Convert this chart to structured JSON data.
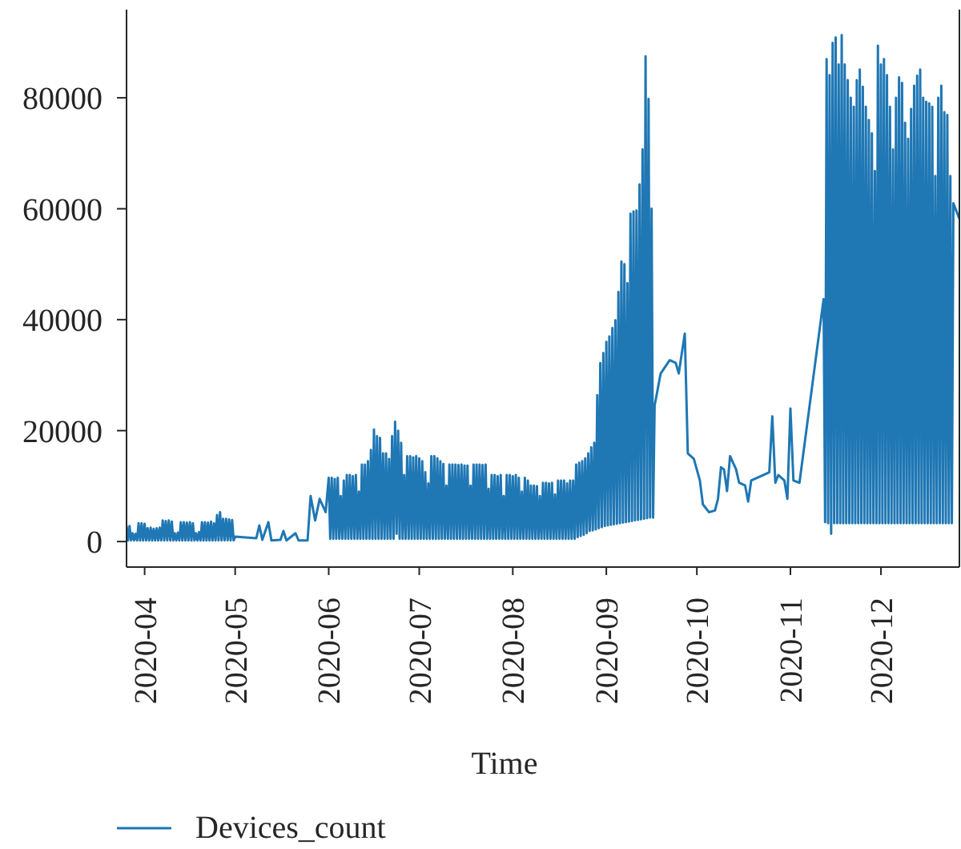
{
  "chart_data": {
    "type": "line",
    "xlabel": "Time",
    "x": [
      "2020-03-26",
      "2020-03-26T12:00",
      "2020-03-27",
      "2020-03-27T12:00",
      "2020-03-28",
      "2020-03-28T12:00",
      "2020-03-29",
      "2020-03-29T12:00",
      "2020-03-30",
      "2020-03-30T12:00",
      "2020-03-31",
      "2020-03-31T12:00",
      "2020-04-01",
      "2020-04-01T12:00",
      "2020-04-02",
      "2020-04-02T12:00",
      "2020-04-03",
      "2020-04-03T12:00",
      "2020-04-04",
      "2020-04-04T12:00",
      "2020-04-05",
      "2020-04-05T12:00",
      "2020-04-06",
      "2020-04-06T12:00",
      "2020-04-07",
      "2020-04-07T12:00",
      "2020-04-08",
      "2020-04-08T12:00",
      "2020-04-09",
      "2020-04-09T12:00",
      "2020-04-10",
      "2020-04-10T12:00",
      "2020-04-11",
      "2020-04-11T12:00",
      "2020-04-12",
      "2020-04-12T12:00",
      "2020-04-13",
      "2020-04-13T12:00",
      "2020-04-14",
      "2020-04-14T12:00",
      "2020-04-15",
      "2020-04-15T12:00",
      "2020-04-16",
      "2020-04-16T12:00",
      "2020-04-17",
      "2020-04-17T12:00",
      "2020-04-18",
      "2020-04-18T12:00",
      "2020-04-19",
      "2020-04-19T12:00",
      "2020-04-20",
      "2020-04-20T12:00",
      "2020-04-21",
      "2020-04-21T12:00",
      "2020-04-22",
      "2020-04-22T12:00",
      "2020-04-23",
      "2020-04-23T12:00",
      "2020-04-24",
      "2020-04-24T12:00",
      "2020-04-25",
      "2020-04-25T12:00",
      "2020-04-26",
      "2020-04-26T12:00",
      "2020-04-27",
      "2020-04-27T12:00",
      "2020-04-28",
      "2020-04-28T12:00",
      "2020-04-29",
      "2020-04-29T12:00",
      "2020-04-30",
      "2020-04-30T12:00",
      "2020-05-01",
      "2020-05-08",
      "2020-05-09",
      "2020-05-10",
      "2020-05-12",
      "2020-05-13",
      "2020-05-16",
      "2020-05-17",
      "2020-05-18",
      "2020-05-21",
      "2020-05-22",
      "2020-05-25",
      "2020-05-26",
      "2020-05-27T12:00",
      "2020-05-29",
      "2020-05-31",
      "2020-06-01",
      "2020-06-01T12:00",
      "2020-06-02",
      "2020-06-02T12:00",
      "2020-06-03",
      "2020-06-03T12:00",
      "2020-06-04",
      "2020-06-04T12:00",
      "2020-06-05",
      "2020-06-05T12:00",
      "2020-06-06",
      "2020-06-06T12:00",
      "2020-06-07",
      "2020-06-07T12:00",
      "2020-06-08",
      "2020-06-08T12:00",
      "2020-06-09",
      "2020-06-09T12:00",
      "2020-06-10",
      "2020-06-10T12:00",
      "2020-06-11",
      "2020-06-11T12:00",
      "2020-06-12",
      "2020-06-12T12:00",
      "2020-06-13",
      "2020-06-13T12:00",
      "2020-06-14",
      "2020-06-14T12:00",
      "2020-06-15",
      "2020-06-15T12:00",
      "2020-06-16",
      "2020-06-16T12:00",
      "2020-06-17",
      "2020-06-17T12:00",
      "2020-06-18",
      "2020-06-18T12:00",
      "2020-06-19",
      "2020-06-19T12:00",
      "2020-06-20",
      "2020-06-20T12:00",
      "2020-06-21",
      "2020-06-21T12:00",
      "2020-06-22",
      "2020-06-22T12:00",
      "2020-06-23",
      "2020-06-23T12:00",
      "2020-06-24",
      "2020-06-24T12:00",
      "2020-06-25",
      "2020-06-25T12:00",
      "2020-06-26",
      "2020-06-26T12:00",
      "2020-06-27",
      "2020-06-27T12:00",
      "2020-06-28",
      "2020-06-28T12:00",
      "2020-06-29",
      "2020-06-29T12:00",
      "2020-06-30",
      "2020-06-30T12:00",
      "2020-07-01",
      "2020-07-01T12:00",
      "2020-07-02",
      "2020-07-02T12:00",
      "2020-07-03",
      "2020-07-03T12:00",
      "2020-07-04",
      "2020-07-04T12:00",
      "2020-07-05",
      "2020-07-05T12:00",
      "2020-07-06",
      "2020-07-06T12:00",
      "2020-07-07",
      "2020-07-07T12:00",
      "2020-07-08",
      "2020-07-08T12:00",
      "2020-07-09",
      "2020-07-09T12:00",
      "2020-07-10",
      "2020-07-10T12:00",
      "2020-07-11",
      "2020-07-11T12:00",
      "2020-07-12",
      "2020-07-12T12:00",
      "2020-07-13",
      "2020-07-13T12:00",
      "2020-07-14",
      "2020-07-14T12:00",
      "2020-07-15",
      "2020-07-15T12:00",
      "2020-07-16",
      "2020-07-16T12:00",
      "2020-07-17",
      "2020-07-17T12:00",
      "2020-07-18",
      "2020-07-18T12:00",
      "2020-07-19",
      "2020-07-19T12:00",
      "2020-07-20",
      "2020-07-20T12:00",
      "2020-07-21",
      "2020-07-21T12:00",
      "2020-07-22",
      "2020-07-22T12:00",
      "2020-07-23",
      "2020-07-23T12:00",
      "2020-07-24",
      "2020-07-24T12:00",
      "2020-07-25",
      "2020-07-25T12:00",
      "2020-07-26",
      "2020-07-26T12:00",
      "2020-07-27",
      "2020-07-27T12:00",
      "2020-07-28",
      "2020-07-28T12:00",
      "2020-07-29",
      "2020-07-29T12:00",
      "2020-07-30",
      "2020-07-30T12:00",
      "2020-07-31",
      "2020-07-31T12:00",
      "2020-08-01",
      "2020-08-01T12:00",
      "2020-08-02",
      "2020-08-02T12:00",
      "2020-08-03",
      "2020-08-03T12:00",
      "2020-08-04",
      "2020-08-04T12:00",
      "2020-08-05",
      "2020-08-05T12:00",
      "2020-08-06",
      "2020-08-06T12:00",
      "2020-08-07",
      "2020-08-07T12:00",
      "2020-08-08",
      "2020-08-08T12:00",
      "2020-08-09",
      "2020-08-09T12:00",
      "2020-08-10",
      "2020-08-10T12:00",
      "2020-08-11",
      "2020-08-11T12:00",
      "2020-08-12",
      "2020-08-12T12:00",
      "2020-08-13",
      "2020-08-13T12:00",
      "2020-08-14",
      "2020-08-14T12:00",
      "2020-08-15",
      "2020-08-15T12:00",
      "2020-08-16",
      "2020-08-16T12:00",
      "2020-08-17",
      "2020-08-17T12:00",
      "2020-08-18",
      "2020-08-18T12:00",
      "2020-08-19",
      "2020-08-19T12:00",
      "2020-08-20",
      "2020-08-20T12:00",
      "2020-08-21",
      "2020-08-21T12:00",
      "2020-08-22",
      "2020-08-22T12:00",
      "2020-08-23",
      "2020-08-23T12:00",
      "2020-08-24",
      "2020-08-24T12:00",
      "2020-08-25",
      "2020-08-25T12:00",
      "2020-08-26",
      "2020-08-26T12:00",
      "2020-08-27",
      "2020-08-27T12:00",
      "2020-08-28",
      "2020-08-28T12:00",
      "2020-08-29",
      "2020-08-29T12:00",
      "2020-08-30",
      "2020-08-30T12:00",
      "2020-08-31",
      "2020-08-31T12:00",
      "2020-09-01",
      "2020-09-01T12:00",
      "2020-09-02",
      "2020-09-02T12:00",
      "2020-09-03",
      "2020-09-03T12:00",
      "2020-09-04",
      "2020-09-04T12:00",
      "2020-09-05",
      "2020-09-05T12:00",
      "2020-09-06",
      "2020-09-06T12:00",
      "2020-09-07",
      "2020-09-07T12:00",
      "2020-09-08",
      "2020-09-08T12:00",
      "2020-09-09",
      "2020-09-09T12:00",
      "2020-09-10",
      "2020-09-10T12:00",
      "2020-09-11",
      "2020-09-11T12:00",
      "2020-09-12",
      "2020-09-12T12:00",
      "2020-09-13",
      "2020-09-13T12:00",
      "2020-09-14",
      "2020-09-14T12:00",
      "2020-09-15",
      "2020-09-15T12:00",
      "2020-09-16",
      "2020-09-16T12:00",
      "2020-09-17",
      "2020-09-19",
      "2020-09-22",
      "2020-09-24",
      "2020-09-25",
      "2020-09-27",
      "2020-09-28",
      "2020-09-30",
      "2020-10-02",
      "2020-10-03",
      "2020-10-05",
      "2020-10-07",
      "2020-10-08",
      "2020-10-09",
      "2020-10-10",
      "2020-10-11",
      "2020-10-12",
      "2020-10-14",
      "2020-10-15",
      "2020-10-17",
      "2020-10-18",
      "2020-10-19",
      "2020-10-23",
      "2020-10-25",
      "2020-10-26",
      "2020-10-27",
      "2020-10-28",
      "2020-10-30",
      "2020-10-31",
      "2020-11-01",
      "2020-11-02",
      "2020-11-04",
      "2020-11-12",
      "2020-11-12T12:00",
      "2020-11-13",
      "2020-11-13T12:00",
      "2020-11-14",
      "2020-11-14T12:00",
      "2020-11-15",
      "2020-11-15T12:00",
      "2020-11-16",
      "2020-11-16T12:00",
      "2020-11-17",
      "2020-11-17T12:00",
      "2020-11-18",
      "2020-11-18T12:00",
      "2020-11-19",
      "2020-11-19T12:00",
      "2020-11-20",
      "2020-11-20T12:00",
      "2020-11-21",
      "2020-11-21T12:00",
      "2020-11-22",
      "2020-11-22T12:00",
      "2020-11-23",
      "2020-11-23T12:00",
      "2020-11-24",
      "2020-11-24T12:00",
      "2020-11-25",
      "2020-11-25T12:00",
      "2020-11-26",
      "2020-11-26T12:00",
      "2020-11-27",
      "2020-11-27T12:00",
      "2020-11-28",
      "2020-11-28T12:00",
      "2020-11-29",
      "2020-11-29T12:00",
      "2020-11-30",
      "2020-11-30T12:00",
      "2020-12-01",
      "2020-12-01T12:00",
      "2020-12-02",
      "2020-12-02T12:00",
      "2020-12-03",
      "2020-12-03T12:00",
      "2020-12-04",
      "2020-12-04T12:00",
      "2020-12-05",
      "2020-12-05T12:00",
      "2020-12-06",
      "2020-12-06T12:00",
      "2020-12-07",
      "2020-12-07T12:00",
      "2020-12-08",
      "2020-12-08T12:00",
      "2020-12-09",
      "2020-12-09T12:00",
      "2020-12-10",
      "2020-12-10T12:00",
      "2020-12-11",
      "2020-12-11T12:00",
      "2020-12-12",
      "2020-12-12T12:00",
      "2020-12-13",
      "2020-12-13T12:00",
      "2020-12-14",
      "2020-12-14T12:00",
      "2020-12-15",
      "2020-12-15T12:00",
      "2020-12-16",
      "2020-12-16T12:00",
      "2020-12-17",
      "2020-12-17T12:00",
      "2020-12-18",
      "2020-12-18T12:00",
      "2020-12-19",
      "2020-12-19T12:00",
      "2020-12-20",
      "2020-12-20T12:00",
      "2020-12-21",
      "2020-12-21T12:00",
      "2020-12-22",
      "2020-12-22T12:00",
      "2020-12-23",
      "2020-12-23T12:00",
      "2020-12-24",
      "2020-12-24T12:00",
      "2020-12-25",
      "2020-12-27"
    ],
    "series": [
      {
        "name": "Devices_count",
        "color": "#1f77b4",
        "values": [
          2900,
          200,
          2800,
          200,
          1500,
          200,
          1400,
          200,
          3300,
          200,
          3300,
          200,
          3200,
          200,
          2400,
          200,
          2500,
          200,
          2300,
          200,
          2400,
          200,
          2500,
          200,
          3800,
          200,
          3700,
          200,
          3800,
          200,
          3600,
          200,
          1500,
          200,
          1600,
          200,
          3500,
          200,
          3500,
          200,
          3400,
          200,
          3500,
          200,
          3300,
          200,
          1500,
          200,
          1700,
          200,
          3500,
          200,
          3500,
          200,
          3400,
          200,
          3600,
          200,
          3300,
          200,
          4800,
          200,
          5300,
          200,
          4100,
          200,
          4100,
          200,
          4000,
          200,
          3900,
          200,
          900,
          600,
          2900,
          300,
          3500,
          200,
          300,
          1900,
          200,
          1500,
          200,
          200,
          8200,
          3800,
          7700,
          5300,
          11500,
          500,
          11500,
          500,
          11300,
          500,
          11500,
          500,
          8200,
          500,
          11000,
          500,
          12000,
          500,
          12000,
          500,
          11800,
          500,
          12000,
          500,
          9000,
          500,
          13900,
          500,
          13900,
          500,
          14500,
          500,
          16500,
          500,
          20200,
          500,
          19000,
          500,
          18700,
          500,
          15900,
          500,
          15900,
          500,
          14900,
          500,
          19000,
          500,
          21600,
          1400,
          20000,
          500,
          17800,
          500,
          12000,
          500,
          15400,
          500,
          15400,
          500,
          15200,
          500,
          15400,
          500,
          15000,
          500,
          14500,
          500,
          12500,
          500,
          10500,
          500,
          15400,
          500,
          15400,
          500,
          15000,
          500,
          14500,
          500,
          14000,
          500,
          10100,
          500,
          13900,
          500,
          13900,
          500,
          13900,
          500,
          13800,
          500,
          13900,
          500,
          13700,
          500,
          13700,
          500,
          10100,
          500,
          13900,
          500,
          13900,
          500,
          13900,
          500,
          13800,
          500,
          13900,
          500,
          9500,
          500,
          12000,
          500,
          12000,
          500,
          11800,
          500,
          12000,
          500,
          8200,
          500,
          12000,
          500,
          12000,
          500,
          11800,
          500,
          12000,
          500,
          11500,
          500,
          9000,
          500,
          11500,
          500,
          11000,
          500,
          10100,
          500,
          10100,
          500,
          10000,
          500,
          8200,
          500,
          10600,
          500,
          10600,
          500,
          10500,
          500,
          10600,
          500,
          8500,
          500,
          11000,
          500,
          11000,
          500,
          11000,
          500,
          10500,
          500,
          11000,
          500,
          11000,
          500,
          13900,
          800,
          14200,
          1000,
          14500,
          1200,
          15000,
          1500,
          15900,
          1900,
          17000,
          2000,
          17800,
          2200,
          26400,
          2400,
          32200,
          2600,
          34000,
          2800,
          36000,
          2900,
          37000,
          3000,
          38500,
          3100,
          39900,
          3200,
          45000,
          3300,
          50500,
          3400,
          50000,
          3500,
          46600,
          3600,
          59100,
          3700,
          59500,
          3800,
          59700,
          3900,
          64400,
          4000,
          70700,
          4100,
          87500,
          4200,
          79800,
          4300,
          60000,
          4300,
          24500,
          30300,
          32700,
          32200,
          30300,
          37500,
          15900,
          14900,
          11000,
          6700,
          5300,
          5600,
          7700,
          13400,
          13000,
          9100,
          15400,
          13000,
          10600,
          10100,
          7200,
          11000,
          12000,
          12500,
          22600,
          10600,
          12000,
          11000,
          7700,
          24000,
          11000,
          10600,
          43700,
          3500,
          87000,
          3300,
          84100,
          1400,
          89900,
          3300,
          90900,
          3300,
          86000,
          3300,
          91300,
          3300,
          86000,
          3300,
          83200,
          3300,
          80000,
          3300,
          78400,
          3300,
          83200,
          3300,
          85100,
          3300,
          82000,
          3300,
          78400,
          3300,
          76000,
          3300,
          73600,
          3300,
          66800,
          3300,
          89400,
          3300,
          86000,
          3300,
          87000,
          3300,
          84100,
          3300,
          78400,
          3300,
          70700,
          3300,
          80000,
          3300,
          83700,
          3300,
          82700,
          3300,
          75500,
          3300,
          72600,
          3300,
          78000,
          3300,
          82200,
          3300,
          84000,
          3300,
          85100,
          3300,
          80000,
          3300,
          79300,
          3300,
          79000,
          3300,
          78400,
          3300,
          65900,
          3300,
          80000,
          3300,
          82200,
          3300,
          77400,
          3300,
          76900,
          3300,
          65900,
          3300,
          61000,
          58200
        ]
      }
    ],
    "xlim": [
      "2020-03-26",
      "2020-12-27"
    ],
    "xticks": [
      "2020-04",
      "2020-05",
      "2020-06",
      "2020-07",
      "2020-08",
      "2020-09",
      "2020-10",
      "2020-11",
      "2020-12"
    ],
    "ylim": [
      -4600,
      95900
    ],
    "yticks": [
      0,
      20000,
      40000,
      60000,
      80000
    ],
    "legend": "bottom left"
  }
}
